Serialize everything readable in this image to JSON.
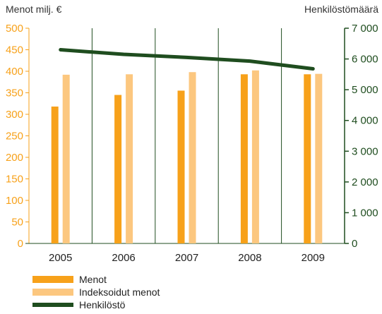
{
  "chart_data": {
    "type": "bar",
    "categories": [
      "2005",
      "2006",
      "2007",
      "2008",
      "2009"
    ],
    "ylabel_left": "Menot milj. €",
    "ylabel_right": "Henkilöstömäärä",
    "ylim_left": [
      0,
      500
    ],
    "ylim_right": [
      0,
      7000
    ],
    "yticks_left": [
      "500",
      "450",
      "400",
      "350",
      "300",
      "250",
      "200",
      "150",
      "100",
      "50",
      "0"
    ],
    "yticks_right": [
      "7 000",
      "6 000",
      "5 000",
      "4 000",
      "3 000",
      "2 000",
      "1 000",
      "0"
    ],
    "grid": "vertical category separators",
    "legend_position": "bottom-left",
    "series": [
      {
        "name": "Menot",
        "type": "bar",
        "axis": "left",
        "color": "#f7a11a",
        "values": [
          318,
          345,
          355,
          393,
          393
        ]
      },
      {
        "name": "Indeksoidut menot",
        "type": "bar",
        "axis": "left",
        "color": "#fcc77f",
        "values": [
          392,
          393,
          398,
          402,
          394
        ]
      },
      {
        "name": "Henkilöstö",
        "type": "line",
        "axis": "right",
        "color": "#1f4d1f",
        "values": [
          6300,
          6150,
          6050,
          5930,
          5680
        ]
      }
    ]
  }
}
